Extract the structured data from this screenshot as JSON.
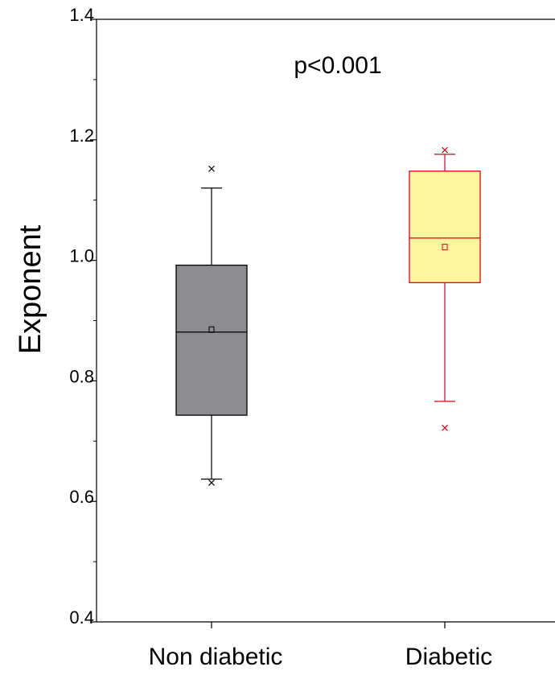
{
  "chart_data": {
    "type": "box",
    "ylabel": "Exponent",
    "ylim": [
      0.4,
      1.4
    ],
    "yticks": [
      "0.4",
      "0.6",
      "0.8",
      "1.0",
      "1.2",
      "1.4"
    ],
    "categories": [
      "Non diabetic",
      "Diabetic"
    ],
    "annotation": "p<0.001",
    "series": [
      {
        "category": "Non diabetic",
        "fill": "#8c8c91",
        "stroke": "#000000",
        "whisker_low": 0.637,
        "q1": 0.743,
        "median": 0.881,
        "q3": 0.992,
        "whisker_high": 1.12,
        "mean": 0.885,
        "outliers": [
          0.631,
          1.152
        ]
      },
      {
        "category": "Diabetic",
        "fill": "#fff59c",
        "stroke": "#e3001b",
        "whisker_low": 0.766,
        "q1": 0.963,
        "median": 1.037,
        "q3": 1.148,
        "whisker_high": 1.176,
        "mean": 1.022,
        "outliers": [
          0.722,
          1.183
        ]
      }
    ]
  }
}
